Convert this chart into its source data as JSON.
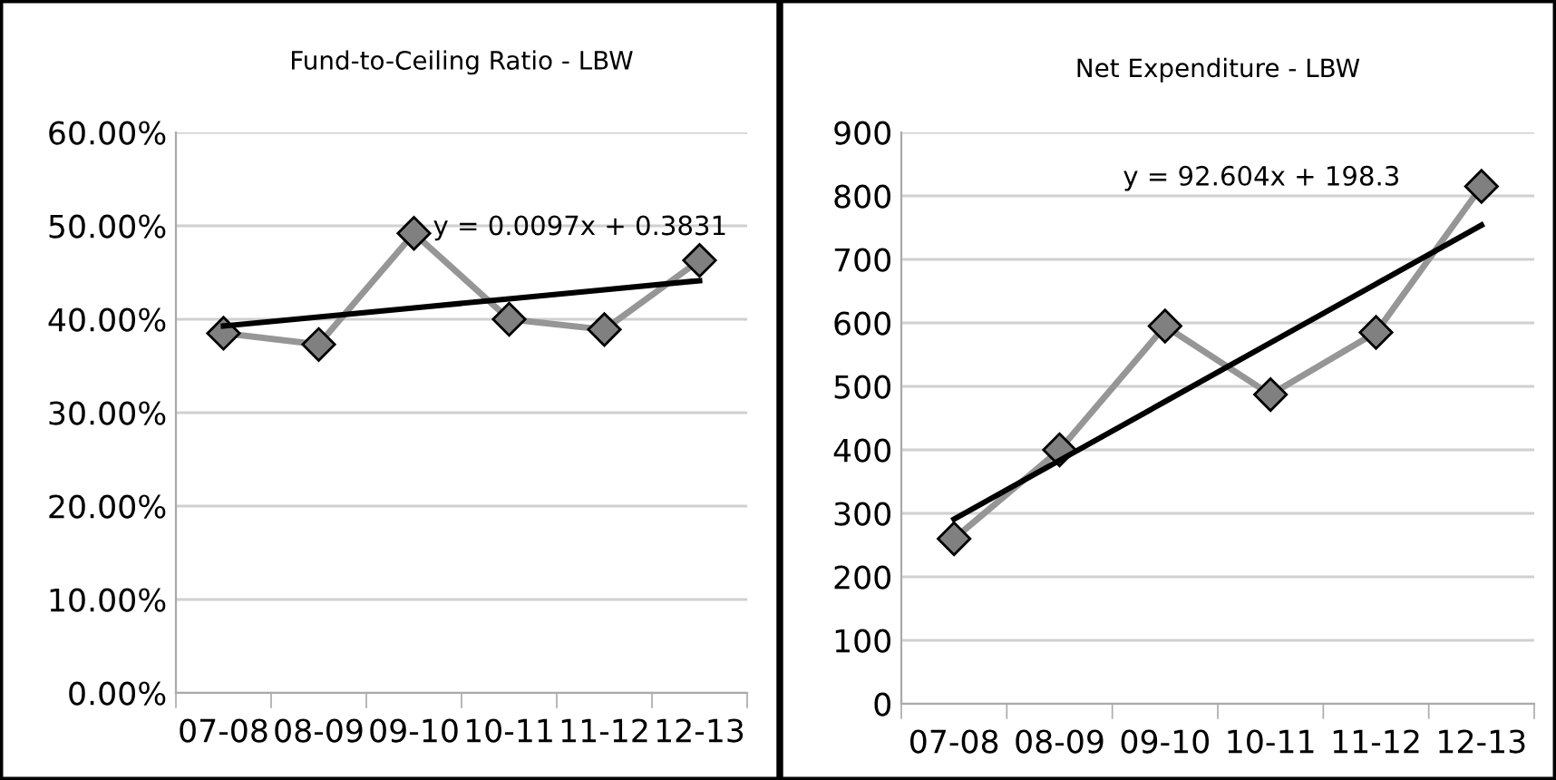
{
  "chart_data": [
    {
      "type": "line",
      "title": "Fund-to-Ceiling Ratio - LBW",
      "categories": [
        "07-08",
        "08-09",
        "09-10",
        "10-11",
        "11-12",
        "12-13"
      ],
      "series": [
        {
          "color": "#969696",
          "values": [
            38.5,
            37.3,
            49.2,
            40.0,
            38.9,
            46.3
          ],
          "marker": "diamond"
        },
        {
          "color": "#000000",
          "values": [
            39.28,
            40.25,
            41.22,
            42.19,
            43.16,
            44.13
          ],
          "marker": "none"
        }
      ],
      "ylim": [
        0,
        60
      ],
      "yticks": [
        {
          "value": 0,
          "label": "0.00%"
        },
        {
          "value": 10,
          "label": "10.00%"
        },
        {
          "value": 20,
          "label": "20.00%"
        },
        {
          "value": 30,
          "label": "30.00%"
        },
        {
          "value": 40,
          "label": "40.00%"
        },
        {
          "value": 50,
          "label": "50.00%"
        },
        {
          "value": 60,
          "label": "60.00%"
        }
      ],
      "grid": "y",
      "legend": false,
      "annotations": [
        "y = 0.0097x + 0.3831"
      ]
    },
    {
      "type": "line",
      "title": "Net Expenditure - LBW",
      "categories": [
        "07-08",
        "08-09",
        "09-10",
        "10-11",
        "11-12",
        "12-13"
      ],
      "series": [
        {
          "color": "#969696",
          "values": [
            260,
            400,
            595,
            487,
            585,
            815
          ],
          "marker": "diamond"
        },
        {
          "color": "#000000",
          "values": [
            290.9,
            383.5,
            476.1,
            568.7,
            661.3,
            753.9
          ],
          "marker": "none"
        }
      ],
      "ylim": [
        0,
        900
      ],
      "yticks": [
        0,
        100,
        200,
        300,
        400,
        500,
        600,
        700,
        800,
        900
      ],
      "grid": "y",
      "legend": false,
      "annotations": [
        "y = 92.604x + 198.3"
      ]
    }
  ]
}
